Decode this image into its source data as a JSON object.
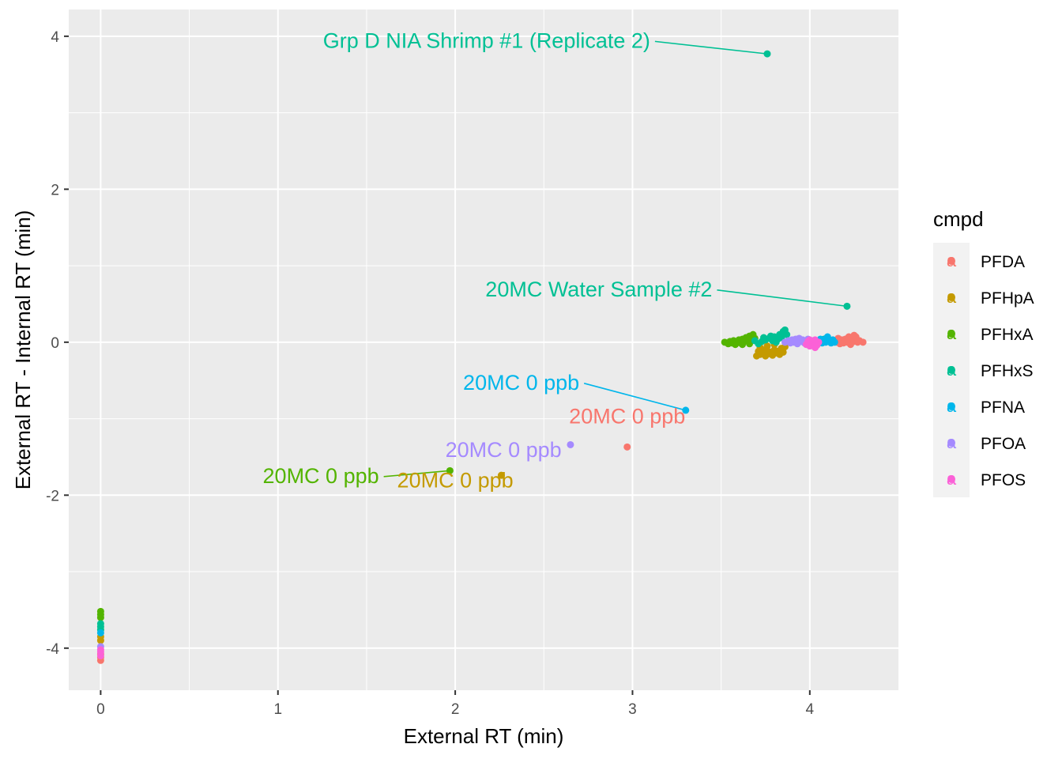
{
  "chart_data": {
    "type": "scatter",
    "xlabel": "External RT (min)",
    "ylabel": "External RT - Internal RT (min)",
    "xlim": [
      -0.18,
      4.5
    ],
    "ylim": [
      -4.55,
      4.35
    ],
    "x_ticks": [
      0,
      1,
      2,
      3,
      4
    ],
    "y_ticks": [
      -4,
      -2,
      0,
      2,
      4
    ],
    "x_tick_labels": [
      "0",
      "1",
      "2",
      "3",
      "4"
    ],
    "y_tick_labels": [
      "-4",
      "-2",
      "0",
      "2",
      "4"
    ],
    "grid": true,
    "legend": {
      "title": "cmpd",
      "position": "right",
      "key_glyph": "a"
    },
    "series": [
      {
        "name": "PFDA",
        "color": "#F8766D",
        "points": [
          [
            0,
            -4.16
          ],
          [
            0,
            -4.12
          ],
          [
            0,
            -4.08
          ],
          [
            2.97,
            -1.37
          ],
          [
            4.15,
            0.0
          ],
          [
            4.17,
            -0.02
          ],
          [
            4.18,
            0.03
          ],
          [
            4.19,
            -0.01
          ],
          [
            4.2,
            0.04
          ],
          [
            4.21,
            0.0
          ],
          [
            4.22,
            0.02
          ],
          [
            4.23,
            -0.03
          ],
          [
            4.24,
            0.06
          ],
          [
            4.25,
            0.01
          ],
          [
            4.26,
            0.07
          ],
          [
            4.27,
            0.0
          ],
          [
            4.28,
            0.02
          ],
          [
            4.3,
            0.0
          ],
          [
            4.16,
            0.05
          ],
          [
            4.22,
            0.07
          ],
          [
            4.25,
            0.09
          ]
        ]
      },
      {
        "name": "PFHpA",
        "color": "#C49A00",
        "points": [
          [
            0,
            -3.9
          ],
          [
            0,
            -3.85
          ],
          [
            2.26,
            -1.74
          ],
          [
            3.7,
            -0.18
          ],
          [
            3.71,
            -0.12
          ],
          [
            3.72,
            -0.16
          ],
          [
            3.73,
            -0.1
          ],
          [
            3.74,
            -0.14
          ],
          [
            3.75,
            -0.18
          ],
          [
            3.76,
            -0.11
          ],
          [
            3.77,
            -0.15
          ],
          [
            3.78,
            -0.13
          ],
          [
            3.79,
            -0.17
          ],
          [
            3.8,
            -0.1
          ],
          [
            3.81,
            -0.14
          ],
          [
            3.82,
            -0.12
          ],
          [
            3.83,
            -0.16
          ],
          [
            3.84,
            -0.08
          ],
          [
            3.85,
            -0.13
          ],
          [
            3.86,
            -0.06
          ],
          [
            3.72,
            -0.07
          ],
          [
            3.76,
            -0.05
          ],
          [
            3.8,
            -0.03
          ]
        ]
      },
      {
        "name": "PFHxA",
        "color": "#53B400",
        "points": [
          [
            0,
            -3.52
          ],
          [
            0,
            -3.56
          ],
          [
            0,
            -3.6
          ],
          [
            1.97,
            -1.68
          ],
          [
            3.52,
            0.0
          ],
          [
            3.54,
            -0.02
          ],
          [
            3.55,
            0.01
          ],
          [
            3.56,
            -0.01
          ],
          [
            3.57,
            0.02
          ],
          [
            3.58,
            -0.03
          ],
          [
            3.59,
            0.0
          ],
          [
            3.6,
            0.03
          ],
          [
            3.61,
            -0.01
          ],
          [
            3.62,
            0.04
          ],
          [
            3.63,
            0.01
          ],
          [
            3.64,
            0.06
          ],
          [
            3.65,
            0.02
          ],
          [
            3.66,
            0.08
          ],
          [
            3.67,
            0.04
          ],
          [
            3.68,
            0.1
          ],
          [
            3.69,
            0.05
          ],
          [
            3.62,
            -0.03
          ],
          [
            3.66,
            -0.02
          ]
        ]
      },
      {
        "name": "PFHxS",
        "color": "#00C094",
        "points": [
          [
            0,
            -3.68
          ],
          [
            0,
            -3.72
          ],
          [
            0,
            -3.76
          ],
          [
            3.76,
            3.77
          ],
          [
            4.21,
            0.47
          ],
          [
            3.71,
            -0.02
          ],
          [
            3.73,
            0.01
          ],
          [
            3.75,
            0.03
          ],
          [
            3.77,
            0.05
          ],
          [
            3.79,
            0.02
          ],
          [
            3.8,
            0.07
          ],
          [
            3.82,
            0.04
          ],
          [
            3.83,
            0.1
          ],
          [
            3.84,
            0.06
          ],
          [
            3.85,
            0.14
          ],
          [
            3.86,
            0.16
          ],
          [
            3.87,
            0.1
          ],
          [
            3.74,
            0.06
          ],
          [
            3.78,
            0.08
          ],
          [
            3.81,
            0.0
          ],
          [
            4.08,
            0.04
          ],
          [
            4.1,
            0.06
          ],
          [
            4.12,
            0.02
          ],
          [
            3.69,
            0.02
          ]
        ]
      },
      {
        "name": "PFNA",
        "color": "#00B6EB",
        "points": [
          [
            0,
            -3.8
          ],
          [
            3.3,
            -0.89
          ],
          [
            4.03,
            0.0
          ],
          [
            4.05,
            0.02
          ],
          [
            4.07,
            -0.01
          ],
          [
            4.08,
            0.03
          ],
          [
            4.09,
            0.0
          ],
          [
            4.1,
            0.05
          ],
          [
            4.11,
            0.02
          ],
          [
            4.12,
            -0.01
          ],
          [
            4.13,
            0.03
          ],
          [
            4.14,
            0.0
          ],
          [
            4.06,
            0.04
          ],
          [
            4.1,
            0.07
          ]
        ]
      },
      {
        "name": "PFOA",
        "color": "#A58AFF",
        "points": [
          [
            0,
            -3.98
          ],
          [
            2.65,
            -1.34
          ],
          [
            3.86,
            0.0
          ],
          [
            3.88,
            0.02
          ],
          [
            3.89,
            -0.01
          ],
          [
            3.9,
            0.03
          ],
          [
            3.91,
            0.0
          ],
          [
            3.92,
            0.04
          ],
          [
            3.93,
            0.02
          ],
          [
            3.94,
            0.05
          ],
          [
            3.95,
            0.01
          ],
          [
            3.96,
            0.03
          ],
          [
            3.97,
            -0.01
          ],
          [
            3.98,
            0.02
          ],
          [
            3.99,
            0.04
          ],
          [
            4.0,
            0.0
          ],
          [
            3.93,
            -0.02
          ]
        ]
      },
      {
        "name": "PFOS",
        "color": "#FB61D7",
        "points": [
          [
            0,
            -4.02
          ],
          [
            0,
            -4.05
          ],
          [
            0,
            -4.1
          ],
          [
            3.98,
            -0.03
          ],
          [
            3.99,
            0.01
          ],
          [
            4.0,
            -0.05
          ],
          [
            4.01,
            -0.02
          ],
          [
            4.02,
            0.02
          ],
          [
            4.03,
            -0.07
          ],
          [
            4.04,
            -0.04
          ],
          [
            4.05,
            0.0
          ],
          [
            4.0,
            0.03
          ],
          [
            4.03,
            0.03
          ]
        ]
      }
    ],
    "annotations": [
      {
        "text": "Grp D NIA Shrimp #1 (Replicate 2)",
        "color": "#00C094",
        "point": [
          3.76,
          3.77
        ],
        "anchor": "end",
        "text_pos": [
          3.1,
          3.85
        ],
        "connector": true
      },
      {
        "text": "20MC Water Sample #2",
        "color": "#00C094",
        "point": [
          4.21,
          0.47
        ],
        "anchor": "end",
        "text_pos": [
          3.45,
          0.6
        ],
        "connector": true
      },
      {
        "text": "20MC 0 ppb",
        "color": "#00B6EB",
        "point": [
          3.3,
          -0.89
        ],
        "anchor": "end",
        "text_pos": [
          2.7,
          -0.62
        ],
        "connector": true
      },
      {
        "text": "20MC 0 ppb",
        "color": "#F8766D",
        "point": [
          2.97,
          -1.37
        ],
        "anchor": "middle",
        "text_pos": [
          2.97,
          -1.06
        ],
        "connector": false
      },
      {
        "text": "20MC 0 ppb",
        "color": "#A58AFF",
        "point": [
          2.65,
          -1.34
        ],
        "anchor": "end",
        "text_pos": [
          2.6,
          -1.5
        ],
        "connector": false
      },
      {
        "text": "20MC 0 ppb",
        "color": "#53B400",
        "point": [
          1.97,
          -1.68
        ],
        "anchor": "end",
        "text_pos": [
          1.57,
          -1.84
        ],
        "connector": true
      },
      {
        "text": "20MC 0 ppb",
        "color": "#C49A00",
        "point": [
          2.26,
          -1.74
        ],
        "anchor": "middle",
        "text_pos": [
          2.0,
          -1.9
        ],
        "connector": false
      }
    ]
  }
}
